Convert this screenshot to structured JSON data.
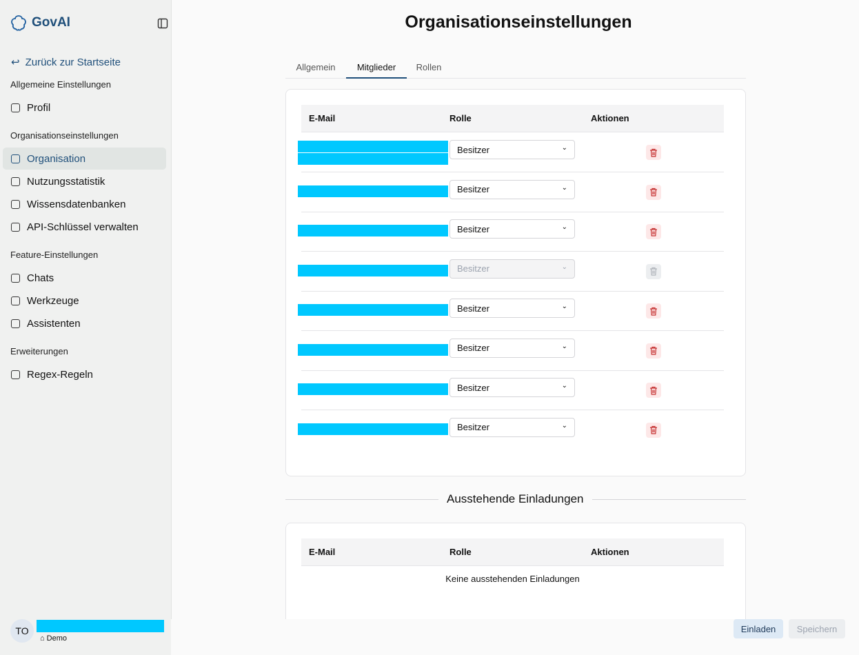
{
  "sidebar": {
    "logo": "GovAI",
    "back_link": "Zurück zur Startseite",
    "groups": [
      {
        "heading": "Allgemeine Einstellungen",
        "items": [
          {
            "label": "Profil"
          }
        ]
      },
      {
        "heading": "Organisationseinstellungen",
        "items": [
          {
            "label": "Organisation",
            "active": true
          },
          {
            "label": "Nutzungsstatistik"
          },
          {
            "label": "Wissensdatenbanken"
          },
          {
            "label": "API-Schlüssel verwalten"
          }
        ]
      },
      {
        "heading": "Feature-Einstellungen",
        "items": [
          {
            "label": "Chats"
          },
          {
            "label": "Werkzeuge"
          },
          {
            "label": "Assistenten"
          }
        ]
      },
      {
        "heading": "Erweiterungen",
        "items": [
          {
            "label": "Regex-Regeln"
          }
        ]
      }
    ],
    "user": {
      "avatar": "TO",
      "workspace": "Demo"
    }
  },
  "main": {
    "title": "Organisationseinstellungen",
    "tabs": [
      {
        "label": "Allgemein"
      },
      {
        "label": "Mitglieder",
        "active": true
      },
      {
        "label": "Rollen"
      }
    ],
    "members": {
      "headers": [
        "E-Mail",
        "Rolle",
        "Aktionen"
      ],
      "rows": [
        {
          "role": "Besitzer"
        },
        {
          "role": "Besitzer"
        },
        {
          "role": "Besitzer"
        },
        {
          "role": "Besitzer",
          "disabled": true
        },
        {
          "role": "Besitzer"
        },
        {
          "role": "Besitzer"
        },
        {
          "role": "Besitzer"
        },
        {
          "role": "Besitzer"
        }
      ]
    },
    "pending": {
      "title": "Ausstehende Einladungen",
      "headers": [
        "E-Mail",
        "Rolle",
        "Aktionen"
      ],
      "empty": "Keine ausstehenden Einladungen"
    },
    "buttons": {
      "invite": "Einladen",
      "save": "Speichern"
    }
  }
}
